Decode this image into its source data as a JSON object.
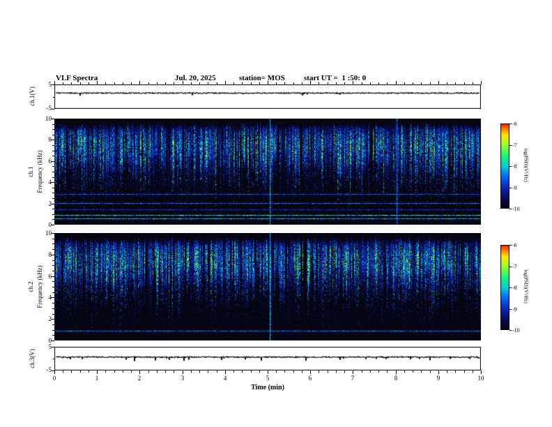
{
  "header": {
    "title": "VLF Spectra",
    "date": "Jul. 20, 2025",
    "station": "station= MOS",
    "start_ut": "start UT =  1 :50: 0"
  },
  "axes": {
    "xlabel": "Time (min)",
    "x_ticks": [
      "0",
      "1",
      "2",
      "3",
      "4",
      "5",
      "6",
      "7",
      "8",
      "9",
      "10"
    ],
    "freq_ticks": [
      "0",
      "2",
      "4",
      "6",
      "8",
      "10"
    ],
    "volt_ticks": [
      "5",
      "-5"
    ],
    "colorbar_ticks": [
      "-6",
      "-7",
      "-8",
      "-9",
      "-10"
    ],
    "colorbar_label": "log(PSD)(V²/Hz)"
  },
  "panels": {
    "wave1": {
      "label": "ch.1(V)"
    },
    "spec1": {
      "label_ch": "ch.1",
      "label_freq": "Frequency (kHz)"
    },
    "spec2": {
      "label_ch": "ch.2",
      "label_freq": "Frequency (kHz)"
    },
    "wave3": {
      "label": "ch.3(V)"
    }
  },
  "chart_data": {
    "type": "heatmap",
    "title": "VLF Spectra",
    "subtitle": "Jul. 20, 2025  station= MOS  start UT = 1:50:0",
    "xlabel": "Time (min)",
    "x_range_min": [
      0,
      10
    ],
    "x_ticks": [
      0,
      1,
      2,
      3,
      4,
      5,
      6,
      7,
      8,
      9,
      10
    ],
    "panels": [
      {
        "id": "ch1_voltage",
        "type": "line",
        "label": "ch.1(V)",
        "y_range": [
          -5,
          5
        ],
        "trace": "nearly flat noisy voltage trace around +1.5 V with rare small downward spikes"
      },
      {
        "id": "ch1_spectrogram",
        "type": "spectrogram",
        "label": "ch.1 Frequency (kHz)",
        "y_range_khz": [
          0,
          10
        ],
        "y_ticks_khz": [
          0,
          2,
          4,
          6,
          8,
          10
        ],
        "broadband_activity_khz": [
          4.5,
          9.6
        ],
        "description": "dense vertical impulsive streaks (sferics) mostly between 5 and 9.5 kHz, blue-cyan-green with occasional yellow",
        "horizontal_lines": [
          {
            "f_khz": 2.9,
            "rel_intensity": 0.5
          },
          {
            "f_khz": 2.05,
            "rel_intensity": 0.55
          },
          {
            "f_khz": 1.45,
            "rel_intensity": 0.4
          },
          {
            "f_khz": 0.95,
            "rel_intensity": 0.8
          },
          {
            "f_khz": 0.6,
            "rel_intensity": 0.7
          }
        ],
        "vertical_events": [
          {
            "t_min": 5.05,
            "rel_intensity": 0.6
          },
          {
            "t_min": 8.03,
            "rel_intensity": 0.5
          }
        ],
        "intensity_label": "log(PSD)(V²/Hz)",
        "intensity_range": [
          -10,
          -6
        ]
      },
      {
        "id": "ch2_spectrogram",
        "type": "spectrogram",
        "label": "ch.2 Frequency (kHz)",
        "y_range_khz": [
          0,
          10
        ],
        "y_ticks_khz": [
          0,
          2,
          4,
          6,
          8,
          10
        ],
        "broadband_activity_khz": [
          4.5,
          9.6
        ],
        "description": "same impulsive streak pattern as ch.1, slightly fewer narrowband lines",
        "horizontal_lines": [
          {
            "f_khz": 0.9,
            "rel_intensity": 0.55
          }
        ],
        "vertical_events": [
          {
            "t_min": 5.05,
            "rel_intensity": 0.6
          }
        ],
        "intensity_label": "log(PSD)(V²/Hz)",
        "intensity_range": [
          -10,
          -6
        ]
      },
      {
        "id": "ch3_voltage",
        "type": "line",
        "label": "ch.3(V)",
        "y_range": [
          -5,
          5
        ],
        "trace": "nearly flat noisy voltage trace around +1 V with frequent tiny spikes"
      }
    ],
    "colorbar": {
      "label": "log(PSD)(V²/Hz)",
      "ticks": [
        -6,
        -7,
        -8,
        -9,
        -10
      ],
      "colormap": "jet-like (red=strong, dark blue/black=weak)"
    }
  }
}
